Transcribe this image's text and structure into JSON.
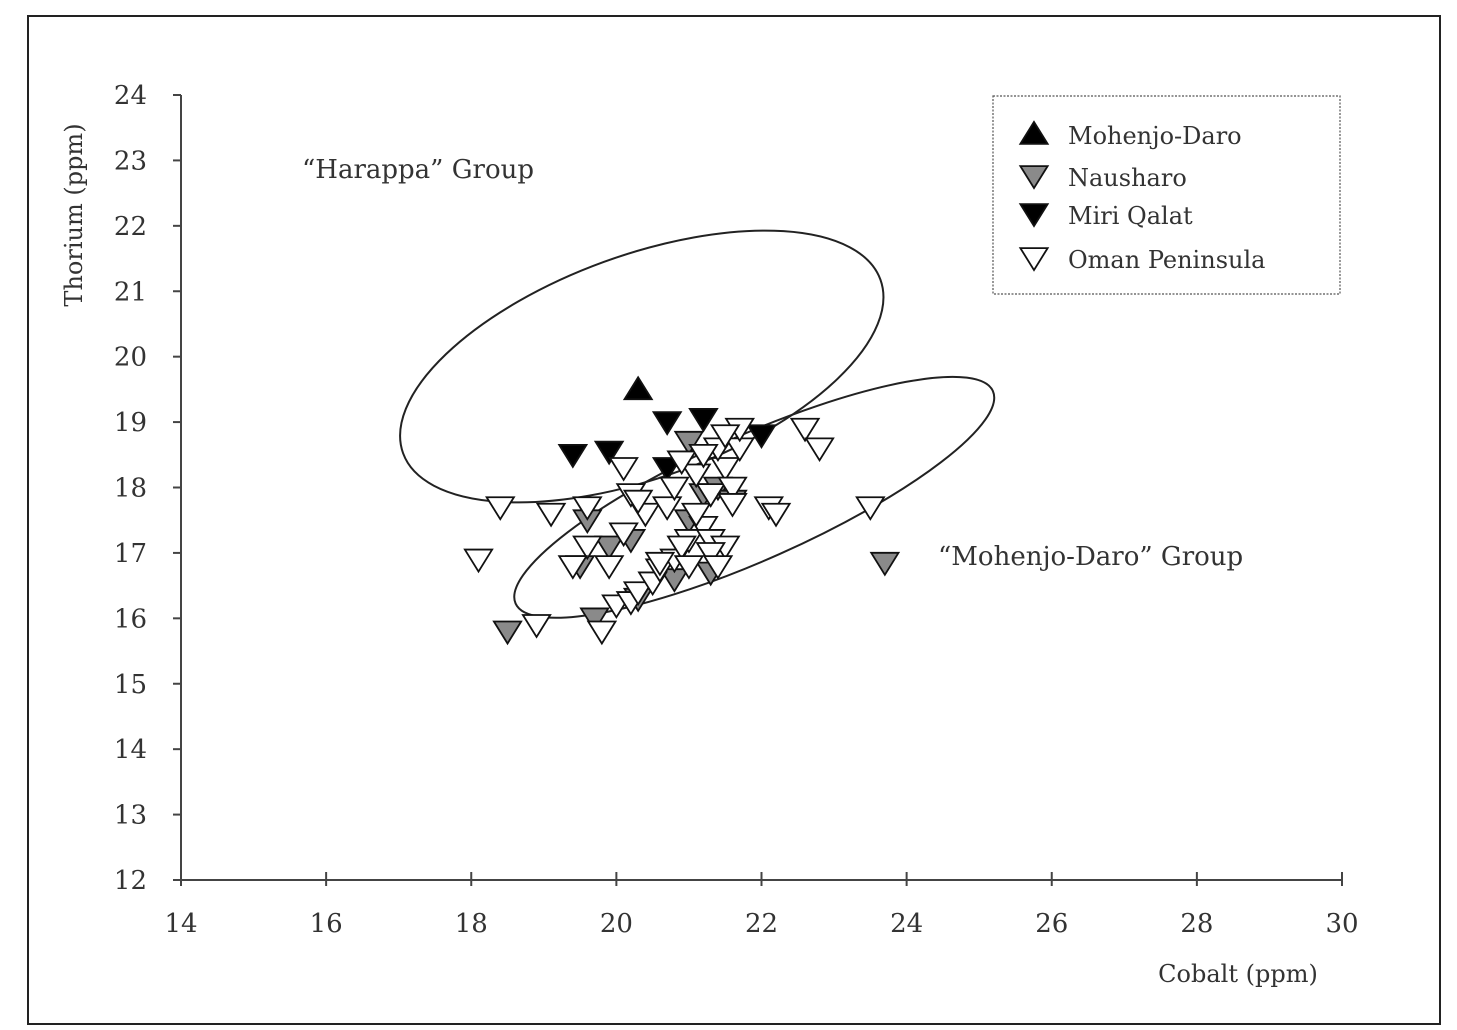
{
  "chart_data": {
    "type": "scatter",
    "xlabel": "Cobalt (ppm)",
    "ylabel": "Thorium (ppm)",
    "xlim": [
      14,
      30
    ],
    "ylim": [
      12,
      24
    ],
    "xticks": [
      "14",
      "16",
      "18",
      "20",
      "22",
      "24",
      "26",
      "28",
      "30"
    ],
    "yticks": [
      "12",
      "13",
      "14",
      "15",
      "16",
      "17",
      "18",
      "19",
      "20",
      "21",
      "22",
      "23",
      "24"
    ],
    "grid": false,
    "legend_position": "top-right",
    "annotations": [
      "“Harappa” Group",
      "“Mohenjo-Daro” Group"
    ],
    "series": [
      {
        "name": "Mohenjo-Daro",
        "marker": "triangle-up",
        "color": "#000000",
        "points": [
          [
            20.3,
            19.5
          ]
        ]
      },
      {
        "name": "Nausharo",
        "marker": "triangle-down",
        "color": "#8a8a8a",
        "points": [
          [
            18.5,
            15.8
          ],
          [
            19.7,
            16.0
          ],
          [
            23.7,
            16.85
          ],
          [
            19.5,
            16.8
          ],
          [
            19.9,
            17.1
          ],
          [
            20.2,
            17.2
          ],
          [
            20.8,
            16.6
          ],
          [
            21.0,
            17.5
          ],
          [
            21.2,
            17.9
          ],
          [
            21.4,
            18.0
          ],
          [
            21.0,
            18.7
          ],
          [
            21.3,
            16.7
          ],
          [
            21.6,
            17.8
          ],
          [
            20.3,
            16.3
          ],
          [
            19.6,
            17.5
          ]
        ]
      },
      {
        "name": "Miri Qalat",
        "marker": "triangle-down",
        "color": "#000000",
        "points": [
          [
            19.4,
            18.5
          ],
          [
            19.9,
            18.55
          ],
          [
            20.7,
            18.3
          ],
          [
            20.7,
            19.0
          ],
          [
            21.2,
            19.05
          ],
          [
            22.0,
            18.8
          ]
        ]
      },
      {
        "name": "Oman Peninsula",
        "marker": "triangle-down",
        "color": "#ffffff",
        "points": [
          [
            18.1,
            16.9
          ],
          [
            18.4,
            17.7
          ],
          [
            18.9,
            15.9
          ],
          [
            19.8,
            15.8
          ],
          [
            19.1,
            17.6
          ],
          [
            19.6,
            17.7
          ],
          [
            19.6,
            17.1
          ],
          [
            19.4,
            16.8
          ],
          [
            19.9,
            16.8
          ],
          [
            20.0,
            16.2
          ],
          [
            20.2,
            16.25
          ],
          [
            20.3,
            16.4
          ],
          [
            20.5,
            16.55
          ],
          [
            20.6,
            16.75
          ],
          [
            20.8,
            16.9
          ],
          [
            20.1,
            17.3
          ],
          [
            20.4,
            17.6
          ],
          [
            20.2,
            17.9
          ],
          [
            20.7,
            17.7
          ],
          [
            20.8,
            18.0
          ],
          [
            20.6,
            16.85
          ],
          [
            21.0,
            17.2
          ],
          [
            21.2,
            17.4
          ],
          [
            21.1,
            17.6
          ],
          [
            21.3,
            17.2
          ],
          [
            21.5,
            17.1
          ],
          [
            21.3,
            17.9
          ],
          [
            21.5,
            18.3
          ],
          [
            21.4,
            18.6
          ],
          [
            21.6,
            18.0
          ],
          [
            21.7,
            18.6
          ],
          [
            21.7,
            18.9
          ],
          [
            21.1,
            18.2
          ],
          [
            20.9,
            17.1
          ],
          [
            21.0,
            16.8
          ],
          [
            21.3,
            17.0
          ],
          [
            21.4,
            16.8
          ],
          [
            21.6,
            17.75
          ],
          [
            22.1,
            17.7
          ],
          [
            22.2,
            17.6
          ],
          [
            22.6,
            18.9
          ],
          [
            22.8,
            18.6
          ],
          [
            23.5,
            17.7
          ],
          [
            20.1,
            18.3
          ],
          [
            20.3,
            17.8
          ],
          [
            20.9,
            18.4
          ],
          [
            21.2,
            18.5
          ],
          [
            21.5,
            18.8
          ]
        ]
      }
    ],
    "ellipses": [
      {
        "name": "Harappa Group",
        "cx": 20.35,
        "cy": 19.85,
        "rx": 3.5,
        "ry": 1.7,
        "angle_deg": 20
      },
      {
        "name": "Mohenjo-Daro Group",
        "cx": 21.9,
        "cy": 17.85,
        "rx": 3.6,
        "ry": 0.95,
        "angle_deg": 24
      }
    ]
  }
}
